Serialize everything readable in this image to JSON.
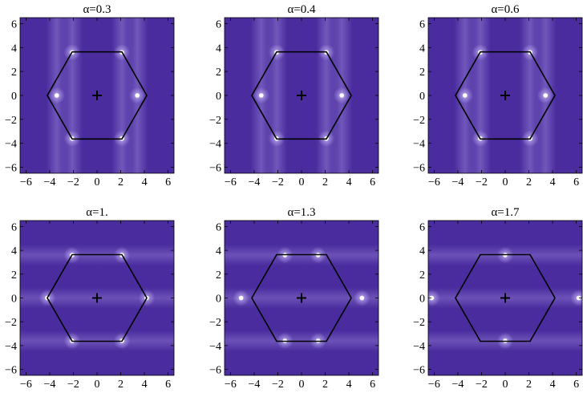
{
  "chart_data": [
    {
      "type": "heatmap",
      "title": "α=0.3",
      "xlim": [
        -6.5,
        6.5
      ],
      "ylim": [
        -6.5,
        6.5
      ],
      "xticks": [
        -6,
        -4,
        -2,
        0,
        2,
        4,
        6
      ],
      "yticks": [
        -6,
        -4,
        -2,
        0,
        2,
        4,
        6
      ],
      "bright_points": [
        [
          -2.1,
          3.6
        ],
        [
          2.1,
          3.6
        ],
        [
          -2.1,
          -3.6
        ],
        [
          2.1,
          -3.6
        ],
        [
          -3.4,
          0
        ],
        [
          3.4,
          0
        ]
      ],
      "hexagon_radius": 4.2,
      "center_marker": [
        0,
        0
      ]
    },
    {
      "type": "heatmap",
      "title": "α=0.4",
      "xlim": [
        -6.5,
        6.5
      ],
      "ylim": [
        -6.5,
        6.5
      ],
      "xticks": [
        -6,
        -4,
        -2,
        0,
        2,
        4,
        6
      ],
      "yticks": [
        -6,
        -4,
        -2,
        0,
        2,
        4,
        6
      ],
      "bright_points": [
        [
          -2.1,
          3.6
        ],
        [
          2.1,
          3.6
        ],
        [
          -2.1,
          -3.6
        ],
        [
          2.1,
          -3.6
        ],
        [
          -3.4,
          0
        ],
        [
          3.4,
          0
        ]
      ],
      "hexagon_radius": 4.2,
      "center_marker": [
        0,
        0
      ]
    },
    {
      "type": "heatmap",
      "title": "α=0.6",
      "xlim": [
        -6.5,
        6.5
      ],
      "ylim": [
        -6.5,
        6.5
      ],
      "xticks": [
        -6,
        -4,
        -2,
        0,
        2,
        4,
        6
      ],
      "yticks": [
        -6,
        -4,
        -2,
        0,
        2,
        4,
        6
      ],
      "bright_points": [
        [
          -2.1,
          3.6
        ],
        [
          2.1,
          3.6
        ],
        [
          -2.1,
          -3.6
        ],
        [
          2.1,
          -3.6
        ],
        [
          -3.4,
          0
        ],
        [
          3.4,
          0
        ]
      ],
      "hexagon_radius": 4.2,
      "center_marker": [
        0,
        0
      ]
    },
    {
      "type": "heatmap",
      "title": "α=1.",
      "xlim": [
        -6.5,
        6.5
      ],
      "ylim": [
        -6.5,
        6.5
      ],
      "xticks": [
        -6,
        -4,
        -2,
        0,
        2,
        4,
        6
      ],
      "yticks": [
        -6,
        -4,
        -2,
        0,
        2,
        4,
        6
      ],
      "bright_points": [
        [
          -2.1,
          3.6
        ],
        [
          2.1,
          3.6
        ],
        [
          -2.1,
          -3.6
        ],
        [
          2.1,
          -3.6
        ],
        [
          -4.2,
          0
        ],
        [
          4.2,
          0
        ]
      ],
      "hexagon_radius": 4.2,
      "center_marker": [
        0,
        0
      ]
    },
    {
      "type": "heatmap",
      "title": "α=1.3",
      "xlim": [
        -6.5,
        6.5
      ],
      "ylim": [
        -6.5,
        6.5
      ],
      "xticks": [
        -6,
        -4,
        -2,
        0,
        2,
        4,
        6
      ],
      "yticks": [
        -6,
        -4,
        -2,
        0,
        2,
        4,
        6
      ],
      "bright_points": [
        [
          -1.4,
          3.6
        ],
        [
          1.4,
          3.6
        ],
        [
          -1.4,
          -3.6
        ],
        [
          1.4,
          -3.6
        ],
        [
          -5.1,
          0
        ],
        [
          5.1,
          0
        ]
      ],
      "hexagon_radius": 4.2,
      "center_marker": [
        0,
        0
      ]
    },
    {
      "type": "heatmap",
      "title": "α=1.7",
      "xlim": [
        -6.5,
        6.5
      ],
      "ylim": [
        -6.5,
        6.5
      ],
      "xticks": [
        -6,
        -4,
        -2,
        0,
        2,
        4,
        6
      ],
      "yticks": [
        -6,
        -4,
        -2,
        0,
        2,
        4,
        6
      ],
      "bright_points": [
        [
          0,
          3.6
        ],
        [
          0,
          -3.6
        ],
        [
          -6.2,
          0
        ],
        [
          6.2,
          0
        ]
      ],
      "hexagon_radius": 4.2,
      "center_marker": [
        0,
        0
      ]
    }
  ],
  "colors": {
    "background": "#4a2c9e",
    "bright": "#ffffff",
    "glow": "#b9a8f0",
    "hexagon": "#000000"
  }
}
